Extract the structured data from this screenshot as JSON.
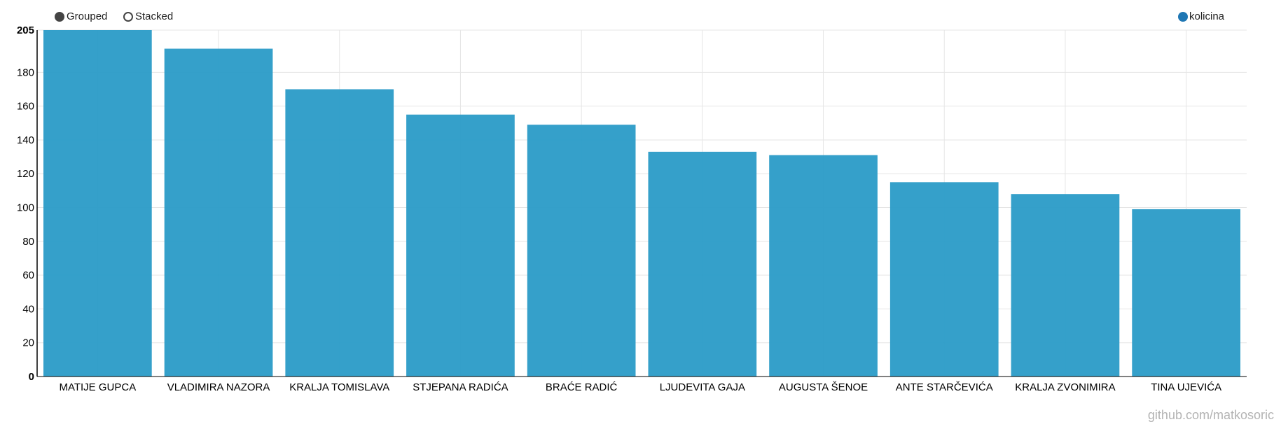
{
  "controls": {
    "grouped_label": "Grouped",
    "stacked_label": "Stacked",
    "selected": "grouped"
  },
  "watermark": "github.com/matkosoric",
  "colors": {
    "bar": "#2a9bc7",
    "legend_dot": "#1f77b4",
    "axis": "#000000",
    "grid": "#e5e5e5"
  },
  "chart_data": {
    "type": "bar",
    "categories": [
      "MATIJE GUPCA",
      "VLADIMIRA NAZORA",
      "KRALJA TOMISLAVA",
      "STJEPANA RADIĆA",
      "BRAĆE RADIĆ",
      "LJUDEVITA GAJA",
      "AUGUSTA ŠENOE",
      "ANTE STARČEVIĆA",
      "KRALJA ZVONIMIRA",
      "TINA UJEVIĆA"
    ],
    "series": [
      {
        "name": "kolicina",
        "values": [
          205,
          194,
          170,
          155,
          149,
          133,
          131,
          115,
          108,
          99
        ]
      }
    ],
    "ylim": [
      0,
      205
    ],
    "yticks": [
      0,
      20,
      40,
      60,
      80,
      100,
      120,
      140,
      160,
      180,
      205
    ],
    "grid": true,
    "legend_position": "top-right"
  }
}
